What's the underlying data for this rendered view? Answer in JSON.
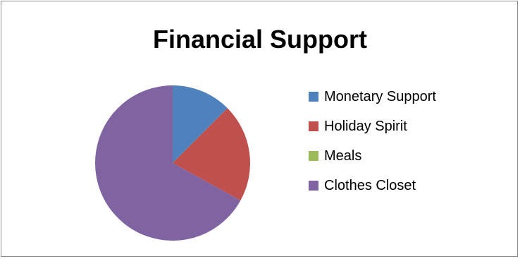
{
  "chart_data": {
    "type": "pie",
    "title": "Financial Support",
    "categories": [
      "Monetary Support",
      "Holiday Spirit",
      "Meals",
      "Clothes Closet"
    ],
    "values": [
      12.5,
      20.5,
      0,
      67
    ],
    "colors": [
      "#4F81BD",
      "#C0504D",
      "#9BBB59",
      "#8064A2"
    ],
    "legend_position": "right",
    "start_angle_deg": 0,
    "direction": "clockwise"
  }
}
